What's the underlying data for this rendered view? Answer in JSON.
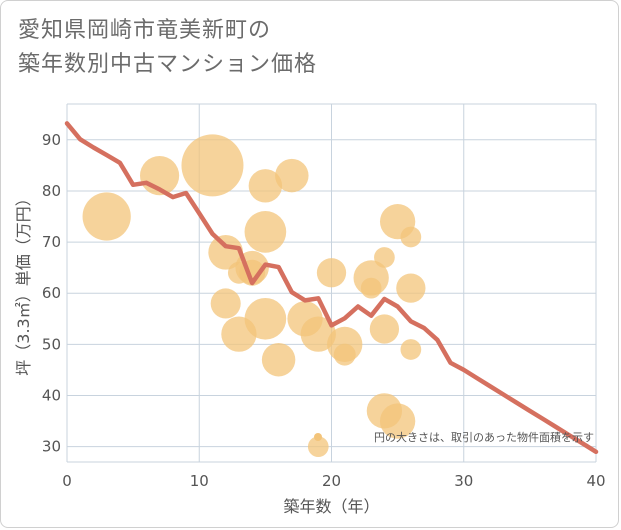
{
  "title": {
    "line1": "愛知県岡崎市竜美新町の",
    "line2": "築年数別中古マンション価格"
  },
  "colors": {
    "bubble": "#f3c47a",
    "line": "#d5705f",
    "grid": "#c8d3de",
    "text": "#555555"
  },
  "chart_data": {
    "type": "scatter",
    "xlabel": "築年数（年）",
    "ylabel": "坪（3.3㎡）単価（万円）",
    "xlim": [
      0,
      40
    ],
    "ylim": [
      27,
      97
    ],
    "xticks": [
      0,
      10,
      20,
      30,
      40
    ],
    "yticks": [
      30,
      40,
      50,
      60,
      70,
      80,
      90
    ],
    "grid": true,
    "note": "円の大きさは、取引のあった物件面積を示す",
    "bubbles": [
      {
        "x": 3,
        "y": 75,
        "size": 5
      },
      {
        "x": 7,
        "y": 83,
        "size": 3
      },
      {
        "x": 11,
        "y": 85,
        "size": 9
      },
      {
        "x": 12,
        "y": 68,
        "size": 2.2
      },
      {
        "x": 12,
        "y": 58,
        "size": 1.5
      },
      {
        "x": 13,
        "y": 64,
        "size": 0.6
      },
      {
        "x": 13,
        "y": 52,
        "size": 2.3
      },
      {
        "x": 14,
        "y": 65,
        "size": 2
      },
      {
        "x": 14,
        "y": 64,
        "size": 1
      },
      {
        "x": 15,
        "y": 81,
        "size": 2
      },
      {
        "x": 15,
        "y": 72,
        "size": 3.5
      },
      {
        "x": 15,
        "y": 55,
        "size": 3.5
      },
      {
        "x": 16,
        "y": 47,
        "size": 2
      },
      {
        "x": 17,
        "y": 83,
        "size": 2
      },
      {
        "x": 18,
        "y": 55,
        "size": 2.3
      },
      {
        "x": 19,
        "y": 52,
        "size": 2.3
      },
      {
        "x": 19,
        "y": 30,
        "size": 0.5
      },
      {
        "x": 20,
        "y": 64,
        "size": 1.4
      },
      {
        "x": 21,
        "y": 50,
        "size": 2.3
      },
      {
        "x": 21,
        "y": 48,
        "size": 0.6
      },
      {
        "x": 23,
        "y": 63,
        "size": 2.3
      },
      {
        "x": 23,
        "y": 61,
        "size": 0.5
      },
      {
        "x": 24,
        "y": 67,
        "size": 0.5
      },
      {
        "x": 24,
        "y": 53,
        "size": 1.4
      },
      {
        "x": 24,
        "y": 37,
        "size": 2.3
      },
      {
        "x": 25,
        "y": 74,
        "size": 2.3
      },
      {
        "x": 25,
        "y": 35,
        "size": 2.3
      },
      {
        "x": 26,
        "y": 71,
        "size": 0.5
      },
      {
        "x": 26,
        "y": 61,
        "size": 1.4
      },
      {
        "x": 26,
        "y": 49,
        "size": 0.5
      }
    ],
    "line": {
      "x": [
        0,
        1,
        2,
        3,
        4,
        5,
        6,
        7,
        8,
        9,
        10,
        11,
        12,
        13,
        14,
        15,
        16,
        17,
        18,
        19,
        20,
        21,
        22,
        23,
        24,
        25,
        26,
        27,
        28,
        29,
        30,
        31,
        32,
        33,
        34,
        35,
        36,
        37,
        38,
        39,
        40
      ],
      "y": [
        93.2,
        90.1,
        88.5,
        87.0,
        85.5,
        81.2,
        81.6,
        80.3,
        78.8,
        79.6,
        75.6,
        71.6,
        69.2,
        68.8,
        62.0,
        65.6,
        65.1,
        60.2,
        58.6,
        59.0,
        53.7,
        55.1,
        57.4,
        55.6,
        58.9,
        57.4,
        54.5,
        53.2,
        50.9,
        46.4,
        45.0,
        43.4,
        41.8,
        40.2,
        38.6,
        37.0,
        35.4,
        33.8,
        32.2,
        30.6,
        29.0
      ]
    }
  }
}
